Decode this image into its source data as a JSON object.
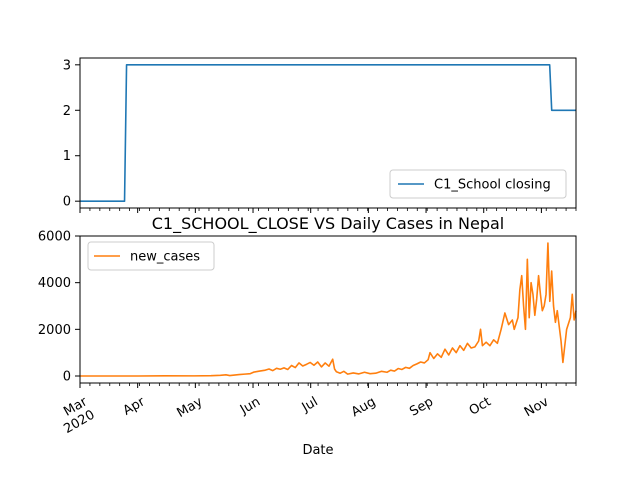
{
  "chart_data": [
    {
      "type": "line",
      "series": [
        {
          "name": "C1_School closing",
          "color": "#1f77b4",
          "points": [
            [
              "2020-03-01",
              0
            ],
            [
              "2020-03-23",
              0
            ],
            [
              "2020-03-24",
              3
            ],
            [
              "2020-10-19",
              3
            ],
            [
              "2020-10-20",
              2
            ],
            [
              "2020-11-01",
              2
            ]
          ]
        }
      ],
      "xlim": [
        "2020-03-01",
        "2020-11-01"
      ],
      "ylim": [
        -0.15,
        3.15
      ],
      "yticks": [
        0,
        1,
        2,
        3
      ],
      "legend": "lower right",
      "grid": false
    },
    {
      "type": "line",
      "title": "C1_SCHOOL_CLOSE VS Daily Cases in Nepal",
      "xlabel": "Date",
      "series": [
        {
          "name": "new_cases",
          "color": "#ff7f0e",
          "points": [
            [
              "2020-03-01",
              0
            ],
            [
              "2020-04-01",
              0
            ],
            [
              "2020-04-15",
              10
            ],
            [
              "2020-05-01",
              5
            ],
            [
              "2020-05-10",
              15
            ],
            [
              "2020-05-15",
              30
            ],
            [
              "2020-05-18",
              50
            ],
            [
              "2020-05-20",
              20
            ],
            [
              "2020-05-25",
              60
            ],
            [
              "2020-05-28",
              80
            ],
            [
              "2020-05-31",
              100
            ],
            [
              "2020-06-02",
              170
            ],
            [
              "2020-06-05",
              210
            ],
            [
              "2020-06-08",
              250
            ],
            [
              "2020-06-10",
              300
            ],
            [
              "2020-06-12",
              230
            ],
            [
              "2020-06-14",
              330
            ],
            [
              "2020-06-16",
              290
            ],
            [
              "2020-06-18",
              350
            ],
            [
              "2020-06-20",
              280
            ],
            [
              "2020-06-22",
              450
            ],
            [
              "2020-06-24",
              360
            ],
            [
              "2020-06-26",
              560
            ],
            [
              "2020-06-28",
              430
            ],
            [
              "2020-06-30",
              500
            ],
            [
              "2020-07-02",
              580
            ],
            [
              "2020-07-04",
              460
            ],
            [
              "2020-07-06",
              600
            ],
            [
              "2020-07-08",
              390
            ],
            [
              "2020-07-10",
              560
            ],
            [
              "2020-07-12",
              420
            ],
            [
              "2020-07-14",
              720
            ],
            [
              "2020-07-15",
              300
            ],
            [
              "2020-07-16",
              180
            ],
            [
              "2020-07-18",
              120
            ],
            [
              "2020-07-20",
              200
            ],
            [
              "2020-07-22",
              80
            ],
            [
              "2020-07-25",
              130
            ],
            [
              "2020-07-28",
              90
            ],
            [
              "2020-07-31",
              160
            ],
            [
              "2020-08-03",
              100
            ],
            [
              "2020-08-06",
              120
            ],
            [
              "2020-08-09",
              200
            ],
            [
              "2020-08-12",
              160
            ],
            [
              "2020-08-14",
              250
            ],
            [
              "2020-08-16",
              210
            ],
            [
              "2020-08-18",
              320
            ],
            [
              "2020-08-20",
              280
            ],
            [
              "2020-08-22",
              370
            ],
            [
              "2020-08-24",
              330
            ],
            [
              "2020-08-26",
              450
            ],
            [
              "2020-08-28",
              520
            ],
            [
              "2020-08-30",
              600
            ],
            [
              "2020-09-01",
              560
            ],
            [
              "2020-09-03",
              700
            ],
            [
              "2020-09-04",
              1000
            ],
            [
              "2020-09-06",
              750
            ],
            [
              "2020-09-08",
              950
            ],
            [
              "2020-09-10",
              800
            ],
            [
              "2020-09-12",
              1150
            ],
            [
              "2020-09-14",
              900
            ],
            [
              "2020-09-16",
              1200
            ],
            [
              "2020-09-18",
              1000
            ],
            [
              "2020-09-20",
              1300
            ],
            [
              "2020-09-22",
              1100
            ],
            [
              "2020-09-24",
              1400
            ],
            [
              "2020-09-26",
              1200
            ],
            [
              "2020-09-28",
              1250
            ],
            [
              "2020-09-30",
              1500
            ],
            [
              "2020-10-01",
              2000
            ],
            [
              "2020-10-02",
              1300
            ],
            [
              "2020-10-04",
              1450
            ],
            [
              "2020-10-06",
              1300
            ],
            [
              "2020-10-08",
              1550
            ],
            [
              "2020-10-10",
              1400
            ],
            [
              "2020-10-12",
              2000
            ],
            [
              "2020-10-14",
              2700
            ],
            [
              "2020-10-16",
              2200
            ],
            [
              "2020-10-18",
              2400
            ],
            [
              "2020-10-19",
              2000
            ],
            [
              "2020-10-21",
              2500
            ],
            [
              "2020-10-22",
              3700
            ],
            [
              "2020-10-23",
              4300
            ],
            [
              "2020-10-24",
              3000
            ],
            [
              "2020-10-25",
              2000
            ],
            [
              "2020-10-26",
              5000
            ],
            [
              "2020-10-27",
              2500
            ],
            [
              "2020-10-28",
              4000
            ],
            [
              "2020-10-29",
              3500
            ],
            [
              "2020-10-30",
              2600
            ],
            [
              "2020-10-31",
              3300
            ],
            [
              "2020-11-01",
              4300
            ],
            [
              "2020-11-02",
              3500
            ],
            [
              "2020-11-03",
              2800
            ],
            [
              "2020-11-04",
              3000
            ],
            [
              "2020-11-05",
              3500
            ],
            [
              "2020-11-06",
              5700
            ],
            [
              "2020-11-07",
              3200
            ],
            [
              "2020-11-08",
              4500
            ],
            [
              "2020-11-09",
              3000
            ],
            [
              "2020-11-10",
              2300
            ],
            [
              "2020-11-11",
              2800
            ],
            [
              "2020-11-13",
              1500
            ],
            [
              "2020-11-14",
              580
            ],
            [
              "2020-11-16",
              2000
            ],
            [
              "2020-11-18",
              2500
            ],
            [
              "2020-11-19",
              3500
            ],
            [
              "2020-11-20",
              2400
            ],
            [
              "2020-11-21",
              2800
            ]
          ]
        }
      ],
      "xlim": [
        "2020-03-01",
        "2020-11-21"
      ],
      "ylim": [
        -300,
        6000
      ],
      "yticks": [
        0,
        2000,
        4000,
        6000
      ],
      "xticks": [
        "Mar\n2020",
        "Apr",
        "May",
        "Jun",
        "Jul",
        "Aug",
        "Sep",
        "Oct",
        "Nov"
      ],
      "legend": "upper left",
      "grid": false
    }
  ]
}
